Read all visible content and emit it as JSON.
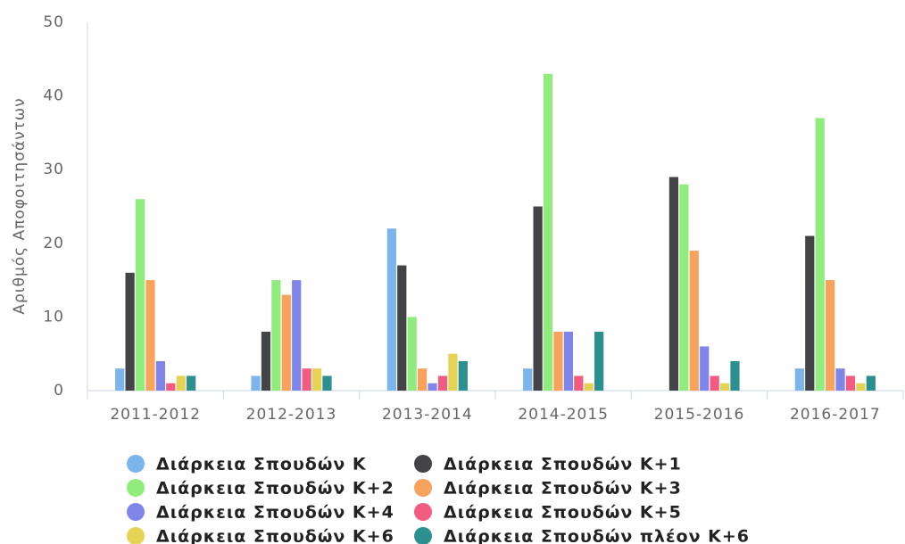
{
  "chart_data": {
    "type": "bar",
    "y_label": "Αριθμός Αποφοιτησάντων",
    "categories": [
      "2011-2012",
      "2012-2013",
      "2013-2014",
      "2014-2015",
      "2015-2016",
      "2016-2017"
    ],
    "series": [
      {
        "name": "Διάρκεια Σπουδών Κ",
        "color": "#7cb5ec",
        "values": [
          3,
          2,
          22,
          3,
          0,
          3
        ]
      },
      {
        "name": "Διάρκεια Σπουδών Κ+1",
        "color": "#434348",
        "values": [
          16,
          8,
          17,
          25,
          29,
          21
        ]
      },
      {
        "name": "Διάρκεια Σπουδών Κ+2",
        "color": "#90ed7d",
        "values": [
          26,
          15,
          10,
          43,
          28,
          37
        ]
      },
      {
        "name": "Διάρκεια Σπουδών Κ+3",
        "color": "#f7a35c",
        "values": [
          15,
          13,
          3,
          8,
          19,
          15
        ]
      },
      {
        "name": "Διάρκεια Σπουδών Κ+4",
        "color": "#8085e9",
        "values": [
          4,
          15,
          1,
          8,
          6,
          3
        ]
      },
      {
        "name": "Διάρκεια Σπουδών Κ+5",
        "color": "#f15c80",
        "values": [
          1,
          3,
          2,
          2,
          2,
          2
        ]
      },
      {
        "name": "Διάρκεια Σπουδών Κ+6",
        "color": "#e4d354",
        "values": [
          2,
          3,
          5,
          1,
          1,
          1
        ]
      },
      {
        "name": "Διάρκεια Σπουδών πλέον Κ+6",
        "color": "#2b908f",
        "values": [
          2,
          2,
          4,
          8,
          4,
          2
        ]
      }
    ],
    "ylim": [
      0,
      50
    ],
    "yticks": [
      0,
      10,
      20,
      30,
      40,
      50
    ],
    "grid": false
  }
}
